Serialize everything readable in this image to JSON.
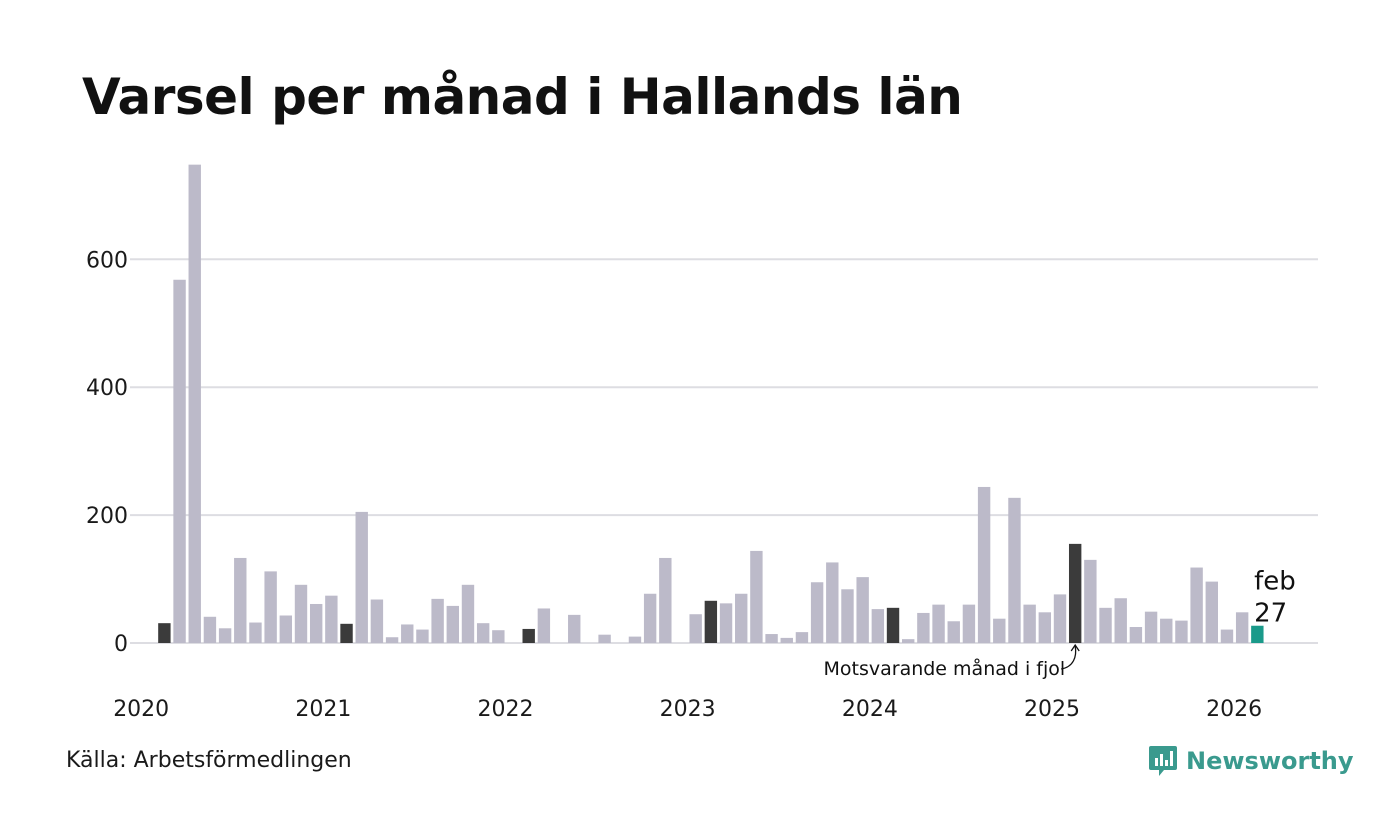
{
  "colors": {
    "bar": "#bcbac9",
    "highlight": "#3b3b3b",
    "current": "#1a9a8a",
    "grid": "#dddde2",
    "brand": "#3a9a8e"
  },
  "source": "Källa: Arbetsförmedlingen",
  "brand": {
    "name": "Newsworthy",
    "icon": "newsworthy-logo-icon"
  },
  "chart_data": {
    "type": "bar",
    "title": "Varsel per månad i Hallands län",
    "xlabel": "",
    "ylabel": "",
    "ylim": [
      0,
      760
    ],
    "yticks": [
      0,
      200,
      400,
      600
    ],
    "xticks": [
      "2020",
      "2021",
      "2022",
      "2023",
      "2024",
      "2025",
      "2026"
    ],
    "grid": true,
    "start": "2020-01",
    "categories": [
      "2020-01",
      "2020-02",
      "2020-03",
      "2020-04",
      "2020-05",
      "2020-06",
      "2020-07",
      "2020-08",
      "2020-09",
      "2020-10",
      "2020-11",
      "2020-12",
      "2021-01",
      "2021-02",
      "2021-03",
      "2021-04",
      "2021-05",
      "2021-06",
      "2021-07",
      "2021-08",
      "2021-09",
      "2021-10",
      "2021-11",
      "2021-12",
      "2022-01",
      "2022-02",
      "2022-03",
      "2022-04",
      "2022-05",
      "2022-06",
      "2022-07",
      "2022-08",
      "2022-09",
      "2022-10",
      "2022-11",
      "2022-12",
      "2023-01",
      "2023-02",
      "2023-03",
      "2023-04",
      "2023-05",
      "2023-06",
      "2023-07",
      "2023-08",
      "2023-09",
      "2023-10",
      "2023-11",
      "2023-12",
      "2024-01",
      "2024-02",
      "2024-03",
      "2024-04",
      "2024-05",
      "2024-06",
      "2024-07",
      "2024-08",
      "2024-09",
      "2024-10",
      "2024-11",
      "2024-12",
      "2025-01",
      "2025-02",
      "2025-03",
      "2025-04",
      "2025-05",
      "2025-06",
      "2025-07",
      "2025-08",
      "2025-09",
      "2025-10",
      "2025-11",
      "2025-12",
      "2026-01",
      "2026-02"
    ],
    "values": [
      0,
      31,
      568,
      748,
      41,
      23,
      133,
      32,
      112,
      43,
      91,
      61,
      74,
      30,
      205,
      68,
      9,
      29,
      21,
      69,
      58,
      91,
      31,
      20,
      0,
      22,
      54,
      0,
      44,
      0,
      13,
      0,
      10,
      77,
      133,
      0,
      45,
      66,
      62,
      77,
      144,
      14,
      8,
      17,
      95,
      126,
      84,
      103,
      53,
      55,
      6,
      47,
      60,
      34,
      60,
      244,
      38,
      227,
      60,
      48,
      76,
      155,
      130,
      55,
      70,
      25,
      49,
      38,
      35,
      118,
      96,
      21,
      48,
      27
    ],
    "highlighted": [
      "2020-02",
      "2021-02",
      "2022-02",
      "2023-02",
      "2024-02",
      "2025-02"
    ],
    "current": "2026-02",
    "current_label": {
      "month": "feb",
      "value": "27"
    },
    "annotation": "Motsvarande månad i fjol"
  }
}
